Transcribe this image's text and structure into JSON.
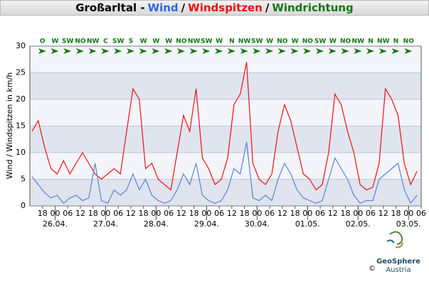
{
  "chart_data": {
    "type": "line",
    "title": [
      {
        "text": "Großarltal -",
        "color": "#000000"
      },
      {
        "text": "Wind",
        "color": "#3366dd"
      },
      {
        "text": "/",
        "color": "#000000"
      },
      {
        "text": "Windspitzen",
        "color": "#ee1111"
      },
      {
        "text": "/",
        "color": "#000000"
      },
      {
        "text": "Windrichtung",
        "color": "#117711"
      }
    ],
    "ylabel": "Wind / Windspitzen in km/h",
    "x": [
      -11,
      -8,
      -5,
      -2,
      1,
      4,
      7,
      10,
      13,
      16,
      19,
      22,
      25,
      28,
      31,
      34,
      37,
      40,
      43,
      46,
      49,
      52,
      55,
      58,
      61,
      64,
      67,
      70,
      73,
      76,
      79,
      82,
      85,
      88,
      91,
      94,
      97,
      100,
      103,
      106,
      109,
      112,
      115,
      118,
      121,
      124,
      127,
      130,
      133,
      136,
      139,
      142,
      145,
      148,
      151,
      154,
      157,
      160,
      163,
      166,
      169,
      172
    ],
    "series": [
      {
        "name": "Windspitzen",
        "color": "#ee1111",
        "values": [
          14,
          16,
          11,
          7,
          6,
          8.5,
          6,
          8,
          10,
          8,
          6,
          5,
          6,
          7,
          6,
          14,
          22,
          20,
          7,
          8,
          5,
          4,
          3,
          10,
          17,
          14,
          22,
          9,
          7,
          4,
          5,
          9,
          19,
          21,
          27,
          8,
          5,
          4,
          6,
          14,
          19,
          16,
          11,
          6,
          5,
          3,
          4,
          10,
          21,
          19,
          14,
          10,
          4,
          3,
          3.5,
          8,
          22,
          20,
          17,
          8,
          4,
          6.5
        ]
      },
      {
        "name": "Wind",
        "color": "#5b84d6",
        "values": [
          5.5,
          4,
          2.5,
          1.5,
          2,
          0.5,
          1.5,
          2,
          1,
          1.5,
          8,
          1,
          0.5,
          3,
          2,
          3,
          6,
          3,
          5,
          2,
          1,
          0.5,
          1,
          3,
          6,
          4,
          8,
          2,
          1,
          0.5,
          1,
          3,
          7,
          6,
          12,
          1.5,
          1,
          2,
          1,
          5,
          8,
          6,
          3,
          1.5,
          1,
          0.5,
          1,
          5,
          9,
          7,
          5,
          2,
          0.5,
          1,
          1,
          5,
          6,
          7,
          8,
          3,
          0.5,
          2
        ]
      }
    ],
    "xlim": [
      -12,
      174
    ],
    "ylim": [
      0,
      30
    ],
    "yticks": [
      0,
      5,
      10,
      15,
      20,
      25,
      30
    ],
    "grid": true,
    "xticks": [
      {
        "value": -6,
        "label": "18"
      },
      {
        "value": 0,
        "label": "00"
      },
      {
        "value": 6,
        "label": "06"
      },
      {
        "value": 12,
        "label": "12"
      },
      {
        "value": 18,
        "label": "18"
      },
      {
        "value": 24,
        "label": "00"
      },
      {
        "value": 30,
        "label": "06"
      },
      {
        "value": 36,
        "label": "12"
      },
      {
        "value": 42,
        "label": "18"
      },
      {
        "value": 48,
        "label": "00"
      },
      {
        "value": 54,
        "label": "06"
      },
      {
        "value": 60,
        "label": "12"
      },
      {
        "value": 66,
        "label": "18"
      },
      {
        "value": 72,
        "label": "00"
      },
      {
        "value": 78,
        "label": "06"
      },
      {
        "value": 84,
        "label": "12"
      },
      {
        "value": 90,
        "label": "18"
      },
      {
        "value": 96,
        "label": "00"
      },
      {
        "value": 102,
        "label": "06"
      },
      {
        "value": 108,
        "label": "12"
      },
      {
        "value": 114,
        "label": "18"
      },
      {
        "value": 120,
        "label": "00"
      },
      {
        "value": 126,
        "label": "06"
      },
      {
        "value": 132,
        "label": "12"
      },
      {
        "value": 138,
        "label": "18"
      },
      {
        "value": 144,
        "label": "00"
      },
      {
        "value": 150,
        "label": "06"
      },
      {
        "value": 156,
        "label": "12"
      },
      {
        "value": 162,
        "label": "18"
      },
      {
        "value": 168,
        "label": "00"
      },
      {
        "value": 174,
        "label": "06"
      }
    ],
    "date_ticks": [
      {
        "value": 0,
        "label": "26.04."
      },
      {
        "value": 24,
        "label": "27.04."
      },
      {
        "value": 48,
        "label": "28.04."
      },
      {
        "value": 72,
        "label": "29.04."
      },
      {
        "value": 96,
        "label": "30.04."
      },
      {
        "value": 120,
        "label": "01.05."
      },
      {
        "value": 144,
        "label": "02.05."
      },
      {
        "value": 168,
        "label": "03.05."
      }
    ],
    "wind_direction": {
      "color": "#117711",
      "x": [
        -6,
        0,
        6,
        12,
        18,
        24,
        30,
        36,
        42,
        48,
        54,
        60,
        66,
        72,
        78,
        84,
        90,
        96,
        102,
        108,
        114,
        120,
        126,
        132,
        138,
        144,
        150,
        156,
        162,
        168
      ],
      "labels": [
        "O",
        "W",
        "SW",
        "NO",
        "NW",
        "C",
        "SW",
        "S",
        "W",
        "W",
        "W",
        "NO",
        "NW",
        "SW",
        "W",
        "N",
        "NW",
        "SW",
        "W",
        "NO",
        "W",
        "NO",
        "SW",
        "W",
        "NO",
        "NW",
        "N",
        "NW",
        "N",
        "NO"
      ]
    }
  },
  "logo": {
    "name": "GeoSphere",
    "sub": "Austria",
    "copyright": "©"
  }
}
